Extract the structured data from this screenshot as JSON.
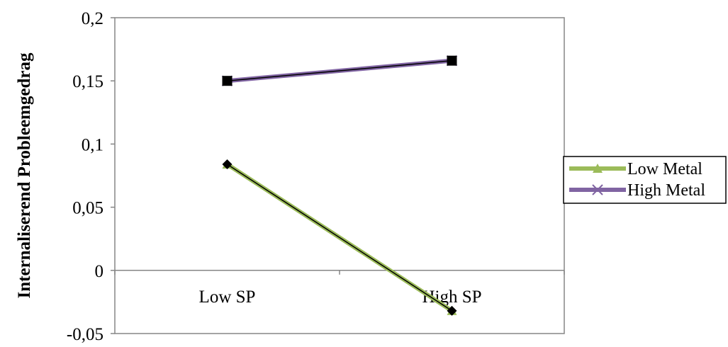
{
  "chart_data": {
    "type": "line",
    "title": "",
    "xlabel": "",
    "ylabel": "Internaliserend Probleemgedrag",
    "categories": [
      "Low SP",
      "High SP"
    ],
    "ylim": [
      -0.05,
      0.2
    ],
    "yticks": [
      {
        "value": -0.05,
        "label": "-0,05"
      },
      {
        "value": 0,
        "label": "0"
      },
      {
        "value": 0.05,
        "label": "0,05"
      },
      {
        "value": 0.1,
        "label": "0,1"
      },
      {
        "value": 0.15,
        "label": "0,15"
      },
      {
        "value": 0.2,
        "label": "0,2"
      }
    ],
    "series": [
      {
        "name": "Low Metal",
        "values": [
          0.084,
          -0.032
        ],
        "color": "#9bbb59",
        "marker": "triangle"
      },
      {
        "name": "High Metal",
        "values": [
          0.15,
          0.166
        ],
        "color": "#8064a2",
        "marker": "x"
      }
    ],
    "overlay_series": [
      {
        "values": [
          0.084,
          -0.032
        ],
        "color": "#000000",
        "marker": "diamond"
      },
      {
        "values": [
          0.15,
          0.166
        ],
        "color": "#000000",
        "marker": "square"
      }
    ],
    "grid": false,
    "legend_position": "right"
  }
}
